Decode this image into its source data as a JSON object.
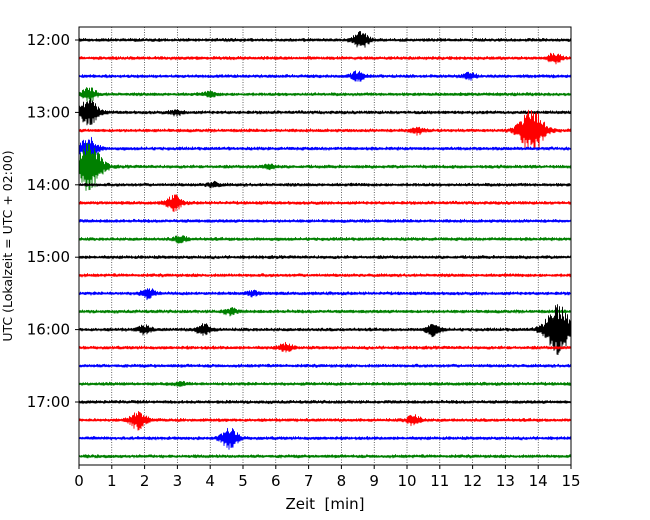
{
  "chart_data": {
    "type": "line",
    "title": "",
    "xlabel": "Zeit  [min]",
    "ylabel": "UTC (Lokalzeit = UTC + 02:00)",
    "xlim": [
      0,
      15
    ],
    "x_ticks": [
      "0",
      "1",
      "2",
      "3",
      "4",
      "5",
      "6",
      "7",
      "8",
      "9",
      "10",
      "11",
      "12",
      "13",
      "14",
      "15"
    ],
    "y_tick_labels": [
      "12:00",
      "13:00",
      "14:00",
      "15:00",
      "16:00",
      "17:00"
    ],
    "grid": "vertical dotted lines at each minute",
    "trace_colors": [
      "#000000",
      "#ff0000",
      "#0000ff",
      "#008000"
    ],
    "traces": [
      {
        "start": "12:00",
        "events": [
          {
            "t": 8.6,
            "amp": 1.0
          }
        ]
      },
      {
        "start": "12:15",
        "events": [
          {
            "t": 14.5,
            "amp": 0.6
          }
        ]
      },
      {
        "start": "12:30",
        "events": [
          {
            "t": 8.5,
            "amp": 0.6
          },
          {
            "t": 11.9,
            "amp": 0.4
          }
        ]
      },
      {
        "start": "12:45",
        "events": [
          {
            "t": 0.3,
            "amp": 0.8
          },
          {
            "t": 4.0,
            "amp": 0.3
          }
        ]
      },
      {
        "start": "13:00",
        "events": [
          {
            "t": 0.3,
            "amp": 1.6
          },
          {
            "t": 3.0,
            "amp": 0.3
          }
        ]
      },
      {
        "start": "13:15",
        "events": [
          {
            "t": 13.8,
            "amp": 2.8
          },
          {
            "t": 10.3,
            "amp": 0.4
          }
        ]
      },
      {
        "start": "13:30",
        "events": [
          {
            "t": 0.3,
            "amp": 1.4
          }
        ]
      },
      {
        "start": "13:45",
        "events": [
          {
            "t": 0.3,
            "amp": 3.0
          },
          {
            "t": 5.8,
            "amp": 0.3
          }
        ]
      },
      {
        "start": "14:00",
        "events": [
          {
            "t": 4.1,
            "amp": 0.3
          }
        ]
      },
      {
        "start": "14:15",
        "events": [
          {
            "t": 2.9,
            "amp": 0.9
          }
        ]
      },
      {
        "start": "14:30",
        "events": []
      },
      {
        "start": "14:45",
        "events": [
          {
            "t": 3.1,
            "amp": 0.4
          }
        ]
      },
      {
        "start": "15:00",
        "events": []
      },
      {
        "start": "15:15",
        "events": []
      },
      {
        "start": "15:30",
        "events": [
          {
            "t": 2.1,
            "amp": 0.6
          },
          {
            "t": 5.3,
            "amp": 0.3
          }
        ]
      },
      {
        "start": "15:45",
        "events": [
          {
            "t": 4.6,
            "amp": 0.4
          }
        ]
      },
      {
        "start": "16:00",
        "events": [
          {
            "t": 2.0,
            "amp": 0.5
          },
          {
            "t": 3.8,
            "amp": 0.7
          },
          {
            "t": 10.8,
            "amp": 0.7
          },
          {
            "t": 14.6,
            "amp": 3.0
          }
        ]
      },
      {
        "start": "16:15",
        "events": [
          {
            "t": 6.3,
            "amp": 0.5
          }
        ]
      },
      {
        "start": "16:30",
        "events": []
      },
      {
        "start": "16:45",
        "events": [
          {
            "t": 3.1,
            "amp": 0.2
          }
        ]
      },
      {
        "start": "17:00",
        "events": []
      },
      {
        "start": "17:15",
        "events": [
          {
            "t": 1.8,
            "amp": 1.1
          },
          {
            "t": 10.2,
            "amp": 0.6
          }
        ]
      },
      {
        "start": "17:30",
        "events": [
          {
            "t": 4.6,
            "amp": 1.2
          }
        ]
      },
      {
        "start": "17:45",
        "events": []
      }
    ]
  }
}
